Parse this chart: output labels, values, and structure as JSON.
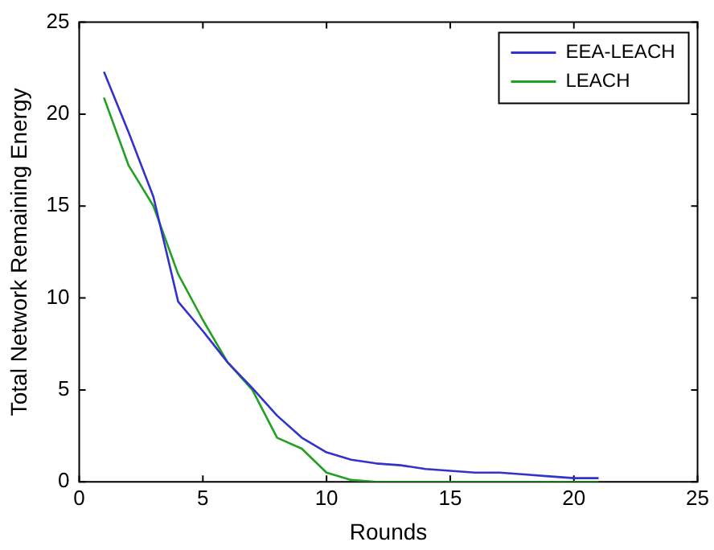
{
  "chart_data": {
    "type": "line",
    "xlabel": "Rounds",
    "ylabel": "Total Network Remaining Energy",
    "x": [
      1,
      2,
      3,
      4,
      5,
      6,
      7,
      8,
      9,
      10,
      11,
      12,
      13,
      14,
      15,
      16,
      17,
      18,
      19,
      20,
      21
    ],
    "series": [
      {
        "name": "EEA-LEACH",
        "color": "#3333cc",
        "values": [
          22.3,
          19,
          15.5,
          9.8,
          8.2,
          6.5,
          5.1,
          3.6,
          2.4,
          1.6,
          1.2,
          1.0,
          0.9,
          0.7,
          0.6,
          0.5,
          0.5,
          0.4,
          0.3,
          0.2,
          0.2
        ]
      },
      {
        "name": "LEACH",
        "color": "#22a022",
        "values": [
          20.9,
          17.2,
          15,
          11.3,
          8.8,
          6.5,
          5.0,
          2.4,
          1.8,
          0.5,
          0.1,
          0,
          0,
          0,
          0,
          0,
          0,
          0,
          0,
          0,
          0
        ]
      }
    ],
    "xlim": [
      0,
      25
    ],
    "xticks": [
      0,
      5,
      10,
      15,
      20,
      25
    ],
    "ylim": [
      0,
      25
    ],
    "yticks": [
      0,
      5,
      10,
      15,
      20,
      25
    ],
    "legend": "top right",
    "marker": "none",
    "line_style": "solid"
  }
}
